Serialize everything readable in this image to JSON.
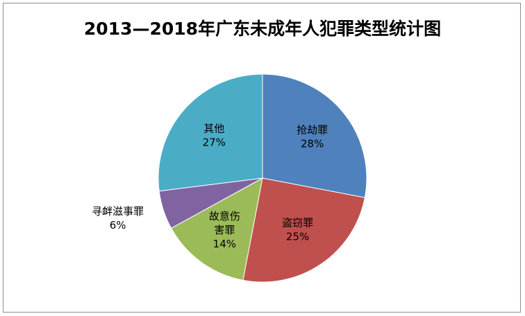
{
  "chart_data": {
    "type": "pie",
    "title": "2013—2018年广东未成年人犯罪类型统计图",
    "categories": [
      "抢劫罪",
      "盗窃罪",
      "故意伤害罪",
      "寻衅滋事罪",
      "其他"
    ],
    "values": [
      28,
      25,
      14,
      6,
      27
    ],
    "value_labels": [
      "28%",
      "25%",
      "14%",
      "6%",
      "27%"
    ],
    "label_lines": [
      [
        "抢劫罪"
      ],
      [
        "盗窃罪"
      ],
      [
        "故意伤",
        "害罪"
      ],
      [
        "寻衅滋事罪"
      ],
      [
        "其他"
      ]
    ],
    "colors": [
      "#4f81bd",
      "#c0504d",
      "#9bbb59",
      "#8064a2",
      "#4bacc6"
    ],
    "legend": "none"
  }
}
